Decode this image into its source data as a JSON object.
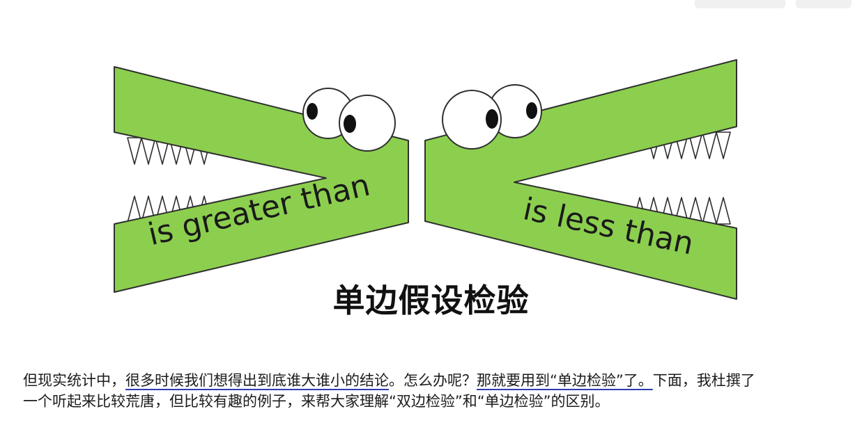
{
  "illustration": {
    "left_label": "is greater than",
    "right_label": "is less than",
    "colors": {
      "crocodile_fill": "#8ccf4f",
      "outline": "#2f2f2f",
      "tooth_fill": "#ffffff",
      "eye_white": "#ffffff",
      "pupil": "#111111"
    }
  },
  "heading": "单边假设检验",
  "paragraph": {
    "line1_prefix": "但现实统计中，",
    "line1_link1": "很多时候我们想得出到底谁大谁小的结论",
    "line1_middle": "。怎么办呢？",
    "line1_link2": "那就要用到“单边检验”了。",
    "line1_suffix": "下面，我杜撰了",
    "line2": "一个听起来比较荒唐，但比较有趣的例子，来帮大家理解“双边检验”和“单边检验”的区别。",
    "link_color": "#2b3fb0"
  }
}
